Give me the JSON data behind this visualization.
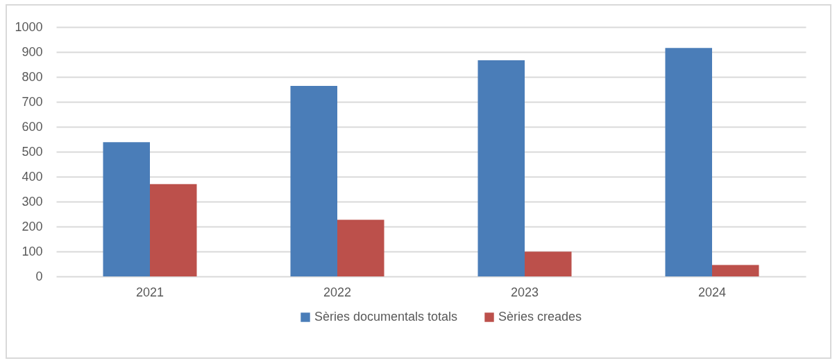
{
  "chart_data": {
    "type": "bar",
    "categories": [
      "2021",
      "2022",
      "2023",
      "2024"
    ],
    "series": [
      {
        "name": "Sèries documentals totals",
        "color": "#4a7db8",
        "values": [
          538,
          764,
          867,
          916
        ]
      },
      {
        "name": "Sèries creades",
        "color": "#bc504b",
        "values": [
          370,
          227,
          99,
          46
        ]
      }
    ],
    "ylim": [
      0,
      1000
    ],
    "yticks": [
      0,
      100,
      200,
      300,
      400,
      500,
      600,
      700,
      800,
      900,
      1000
    ],
    "grid": "y",
    "legend": "bottom"
  }
}
